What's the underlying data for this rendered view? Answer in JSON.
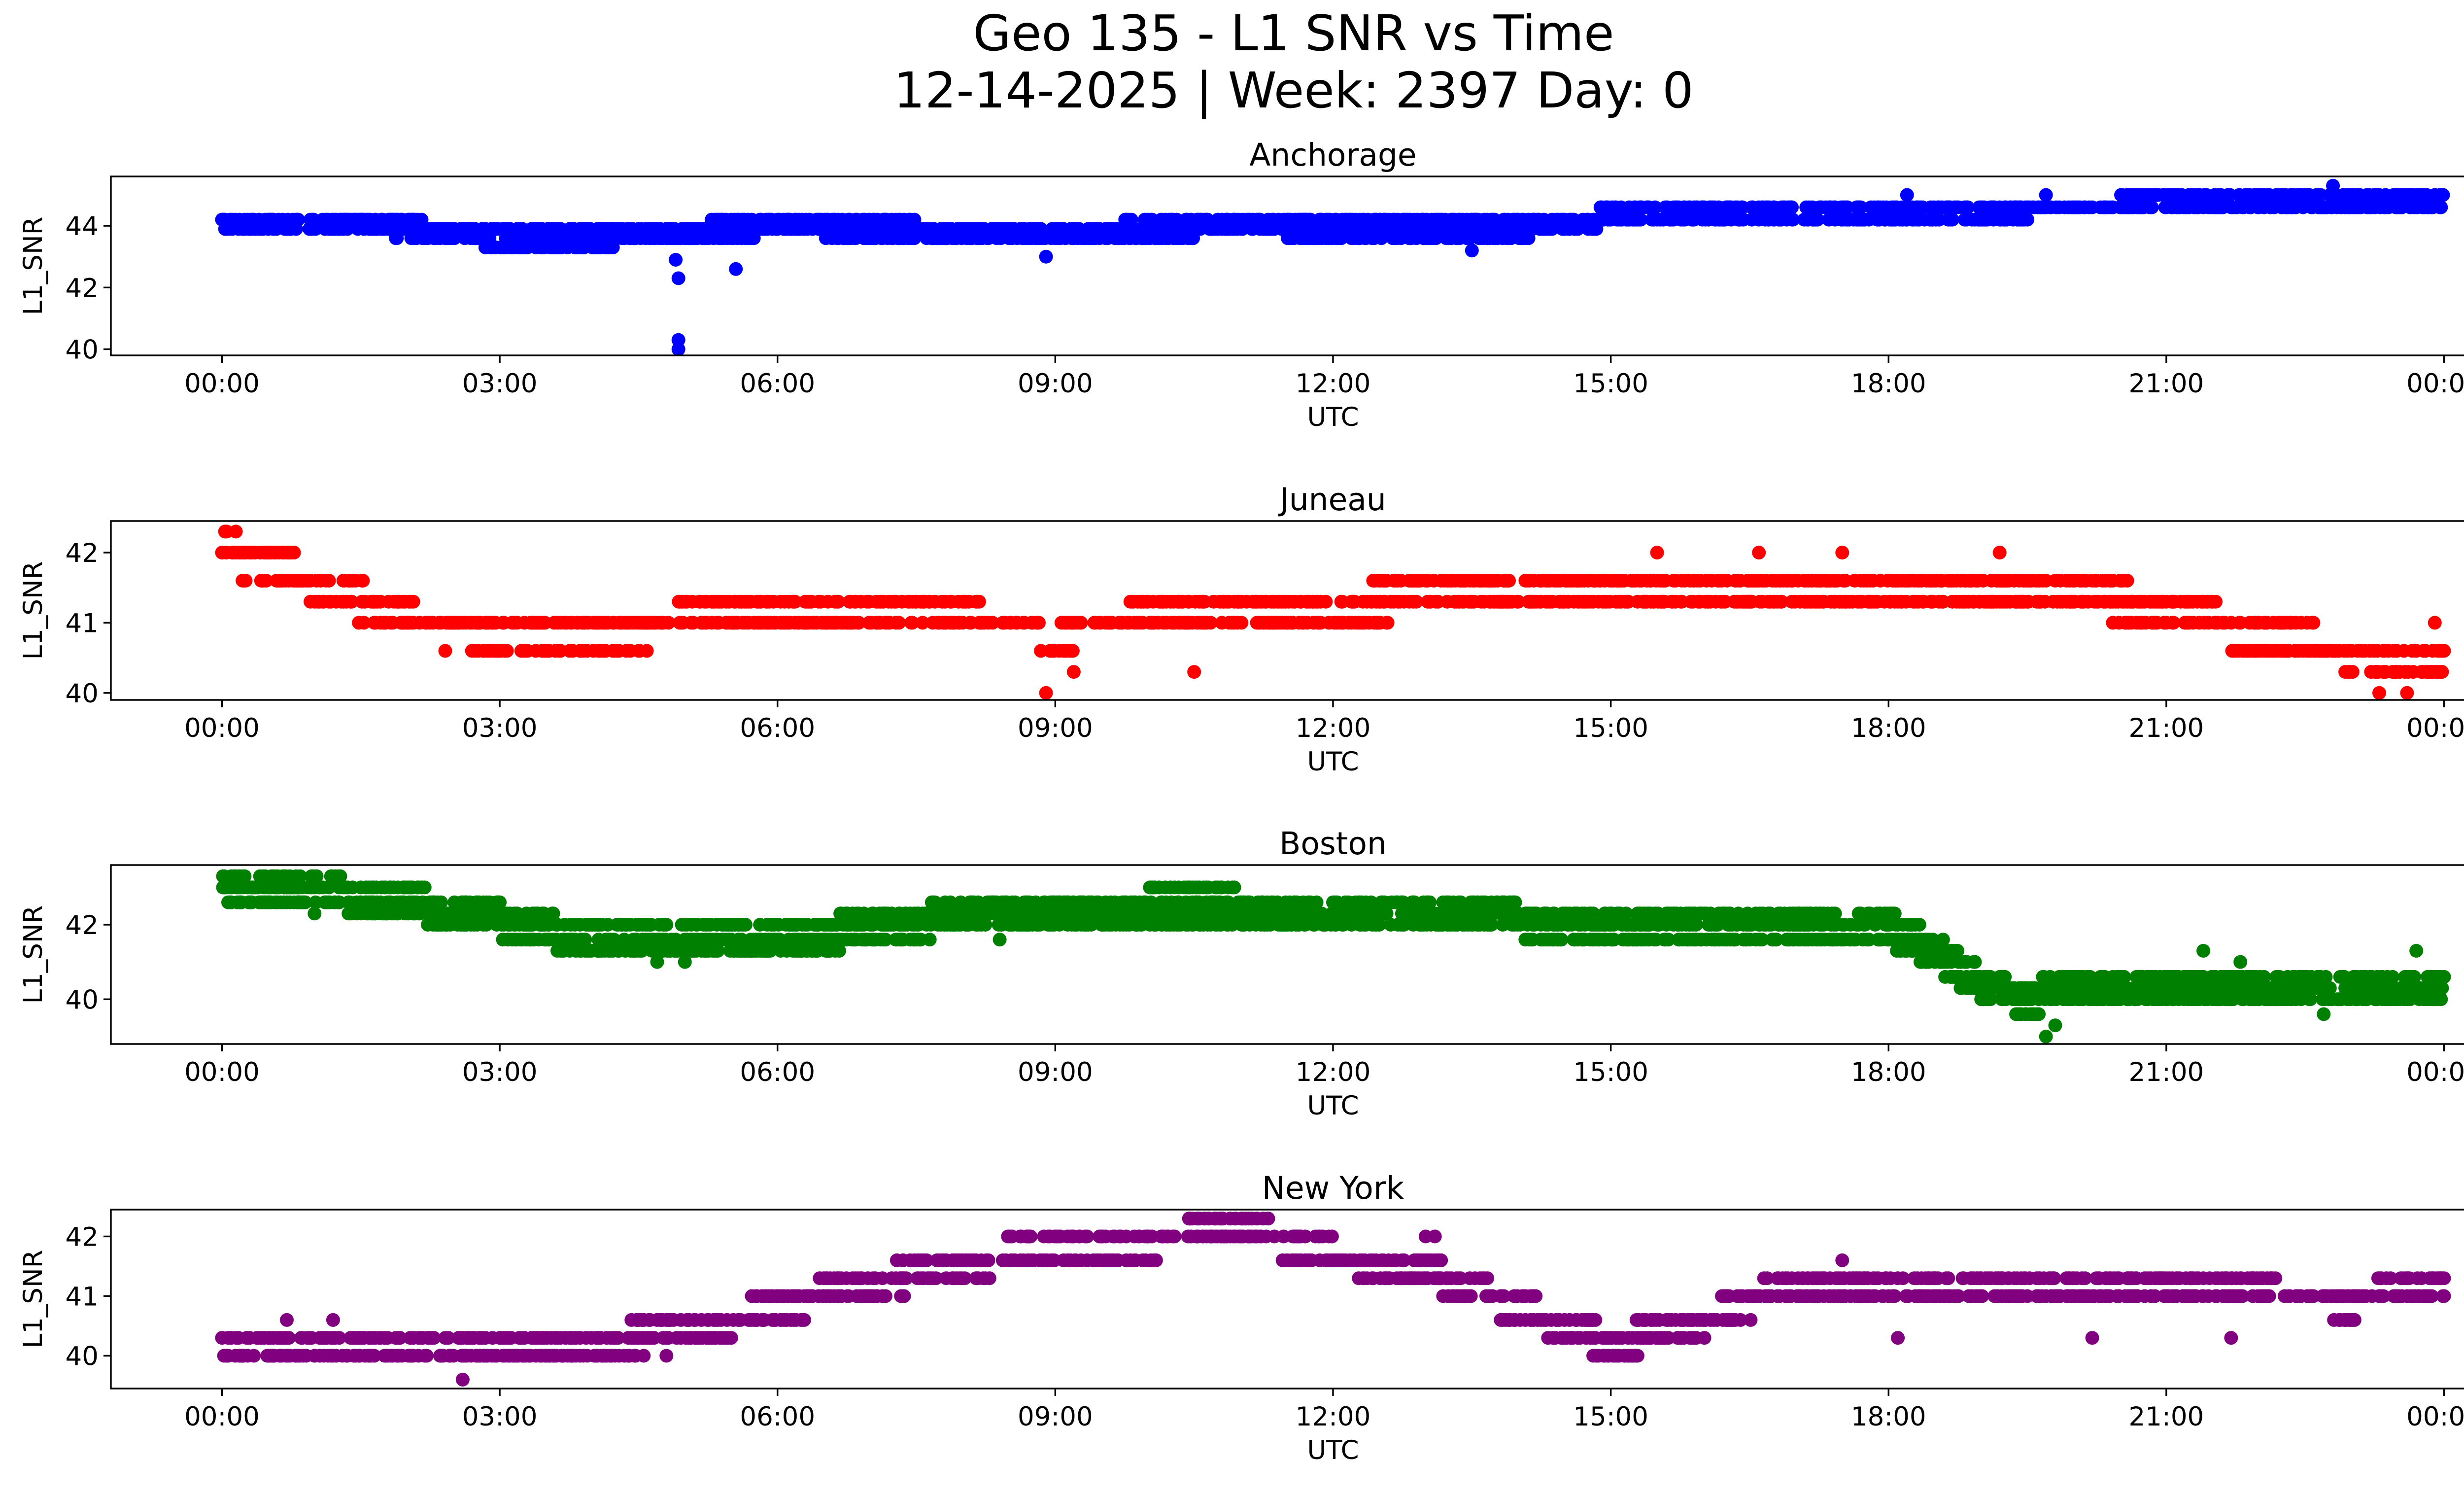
{
  "figure": {
    "title_line1": "Geo 135 - L1 SNR vs Time",
    "title_line2": "12-14-2025 | Week: 2397 Day: 0"
  },
  "chart_data": [
    {
      "type": "scatter",
      "title": "Anchorage",
      "xlabel": "UTC",
      "ylabel": "L1_SNR",
      "color": "#0000ff",
      "x_unit": "hours UTC",
      "xlim": [
        -1.2,
        25.2
      ],
      "ylim": [
        39.8,
        45.6
      ],
      "xticks": [
        0,
        3,
        6,
        9,
        12,
        15,
        18,
        21,
        24
      ],
      "xtick_labels": [
        "00:00",
        "03:00",
        "06:00",
        "09:00",
        "12:00",
        "15:00",
        "18:00",
        "21:00",
        "00:00"
      ],
      "yticks": [
        40,
        42,
        44
      ],
      "ytick_labels": [
        "40",
        "42",
        "44"
      ],
      "trend": {
        "hours": [
          0,
          1,
          2,
          3,
          4,
          5,
          6,
          7,
          8,
          9,
          10,
          11,
          12,
          13,
          14,
          15,
          16,
          17,
          18,
          19,
          20,
          21,
          22,
          23,
          24
        ],
        "values": [
          44.1,
          44.2,
          43.9,
          43.6,
          43.6,
          43.8,
          44.0,
          43.9,
          43.8,
          43.7,
          43.9,
          44.0,
          43.9,
          43.9,
          43.9,
          44.3,
          44.4,
          44.4,
          44.5,
          44.5,
          44.6,
          44.7,
          44.8,
          44.9,
          44.8
        ]
      },
      "levels": [
        43.3,
        43.6,
        43.9,
        44.2,
        44.6,
        45.0,
        45.3
      ],
      "spread": 0.35,
      "outliers": [
        [
          4.93,
          40.0
        ],
        [
          4.93,
          40.3
        ],
        [
          4.93,
          42.3
        ],
        [
          5.55,
          42.6
        ],
        [
          4.9,
          42.9
        ],
        [
          8.9,
          43.0
        ],
        [
          13.5,
          43.2
        ],
        [
          18.2,
          45.0
        ],
        [
          19.7,
          45.0
        ],
        [
          22.8,
          45.3
        ]
      ]
    },
    {
      "type": "scatter",
      "title": "Juneau",
      "xlabel": "UTC",
      "ylabel": "L1_SNR",
      "color": "#ff0000",
      "x_unit": "hours UTC",
      "xlim": [
        -1.2,
        25.2
      ],
      "ylim": [
        39.9,
        42.45
      ],
      "xticks": [
        0,
        3,
        6,
        9,
        12,
        15,
        18,
        21,
        24
      ],
      "xtick_labels": [
        "00:00",
        "03:00",
        "06:00",
        "09:00",
        "12:00",
        "15:00",
        "18:00",
        "21:00",
        "00:00"
      ],
      "yticks": [
        40,
        41,
        42
      ],
      "ytick_labels": [
        "40",
        "41",
        "42"
      ],
      "trend": {
        "hours": [
          0,
          1,
          2,
          3,
          4,
          5,
          6,
          7,
          8,
          9,
          10,
          11,
          12,
          13,
          14,
          15,
          16,
          17,
          18,
          19,
          20,
          21,
          22,
          23,
          24
        ],
        "values": [
          42.0,
          41.6,
          41.0,
          40.8,
          40.8,
          41.0,
          41.1,
          41.0,
          41.0,
          40.9,
          41.0,
          41.1,
          41.2,
          41.4,
          41.5,
          41.5,
          41.5,
          41.5,
          41.5,
          41.5,
          41.4,
          41.2,
          40.8,
          40.6,
          40.5
        ]
      },
      "levels": [
        40.3,
        40.6,
        41.0,
        41.3,
        41.6,
        42.0,
        42.3
      ],
      "spread": 0.32,
      "outliers": [
        [
          0.05,
          42.3
        ],
        [
          0.15,
          42.3
        ],
        [
          8.9,
          40.0
        ],
        [
          9.2,
          40.3
        ],
        [
          10.5,
          40.3
        ],
        [
          15.5,
          42.0
        ],
        [
          16.6,
          42.0
        ],
        [
          17.5,
          42.0
        ],
        [
          19.2,
          42.0
        ],
        [
          23.3,
          40.0
        ],
        [
          23.6,
          40.0
        ],
        [
          23.9,
          41.0
        ]
      ]
    },
    {
      "type": "scatter",
      "title": "Boston",
      "xlabel": "UTC",
      "ylabel": "L1_SNR",
      "color": "#008000",
      "x_unit": "hours UTC",
      "xlim": [
        -1.2,
        25.2
      ],
      "ylim": [
        38.8,
        43.6
      ],
      "xticks": [
        0,
        3,
        6,
        9,
        12,
        15,
        18,
        21,
        24
      ],
      "xtick_labels": [
        "00:00",
        "03:00",
        "06:00",
        "09:00",
        "12:00",
        "15:00",
        "18:00",
        "21:00",
        "00:00"
      ],
      "yticks": [
        40,
        42
      ],
      "ytick_labels": [
        "40",
        "42"
      ],
      "trend": {
        "hours": [
          0,
          1,
          2,
          3,
          4,
          5,
          6,
          7,
          8,
          9,
          10,
          11,
          12,
          13,
          14,
          15,
          16,
          17,
          18,
          18.5,
          19,
          19.5,
          20,
          21,
          22,
          23,
          24
        ],
        "values": [
          43.0,
          42.9,
          42.6,
          42.1,
          41.6,
          41.5,
          41.6,
          41.9,
          42.2,
          42.4,
          42.5,
          42.5,
          42.4,
          42.2,
          42.1,
          42.0,
          42.0,
          41.9,
          41.9,
          41.3,
          40.4,
          40.0,
          40.3,
          40.3,
          40.3,
          40.2,
          40.5
        ]
      },
      "levels": [
        39.0,
        39.3,
        39.6,
        40.0,
        40.3,
        40.6,
        41.0,
        41.3,
        41.6,
        42.0,
        42.3,
        42.6,
        43.0,
        43.3
      ],
      "spread": 0.5,
      "outliers": [
        [
          1.0,
          42.3
        ],
        [
          4.7,
          41.0
        ],
        [
          8.4,
          41.6
        ],
        [
          19.7,
          39.0
        ],
        [
          19.8,
          39.3
        ],
        [
          21.4,
          41.3
        ],
        [
          21.8,
          41.0
        ],
        [
          22.7,
          39.6
        ],
        [
          23.7,
          41.3
        ]
      ]
    },
    {
      "type": "scatter",
      "title": "New York",
      "xlabel": "UTC",
      "ylabel": "L1_SNR",
      "color": "#800080",
      "x_unit": "hours UTC",
      "xlim": [
        -1.2,
        25.2
      ],
      "ylim": [
        39.45,
        42.45
      ],
      "xticks": [
        0,
        3,
        6,
        9,
        12,
        15,
        18,
        21,
        24
      ],
      "xtick_labels": [
        "00:00",
        "03:00",
        "06:00",
        "09:00",
        "12:00",
        "15:00",
        "18:00",
        "21:00",
        "00:00"
      ],
      "yticks": [
        40,
        41,
        42
      ],
      "ytick_labels": [
        "40",
        "41",
        "42"
      ],
      "trend": {
        "hours": [
          0,
          1,
          2,
          3,
          4,
          5,
          6,
          7,
          8,
          9,
          10,
          11,
          12,
          13,
          14,
          15,
          16,
          17,
          18,
          19,
          20,
          21,
          22,
          23,
          24
        ],
        "values": [
          40.0,
          40.1,
          40.1,
          40.1,
          40.2,
          40.4,
          40.8,
          41.2,
          41.5,
          41.9,
          41.9,
          42.1,
          41.7,
          41.4,
          40.8,
          40.2,
          40.6,
          41.2,
          41.1,
          41.0,
          41.0,
          41.1,
          41.0,
          40.9,
          41.2
        ]
      },
      "levels": [
        39.6,
        40.0,
        40.3,
        40.6,
        41.0,
        41.3,
        41.6,
        42.0,
        42.3
      ],
      "spread": 0.32,
      "outliers": [
        [
          0.7,
          40.6
        ],
        [
          1.2,
          40.6
        ],
        [
          2.6,
          39.6
        ],
        [
          4.8,
          40.0
        ],
        [
          13.0,
          42.0
        ],
        [
          13.1,
          42.0
        ],
        [
          17.5,
          41.6
        ],
        [
          18.1,
          40.3
        ],
        [
          20.2,
          40.3
        ],
        [
          21.7,
          40.3
        ]
      ]
    }
  ]
}
